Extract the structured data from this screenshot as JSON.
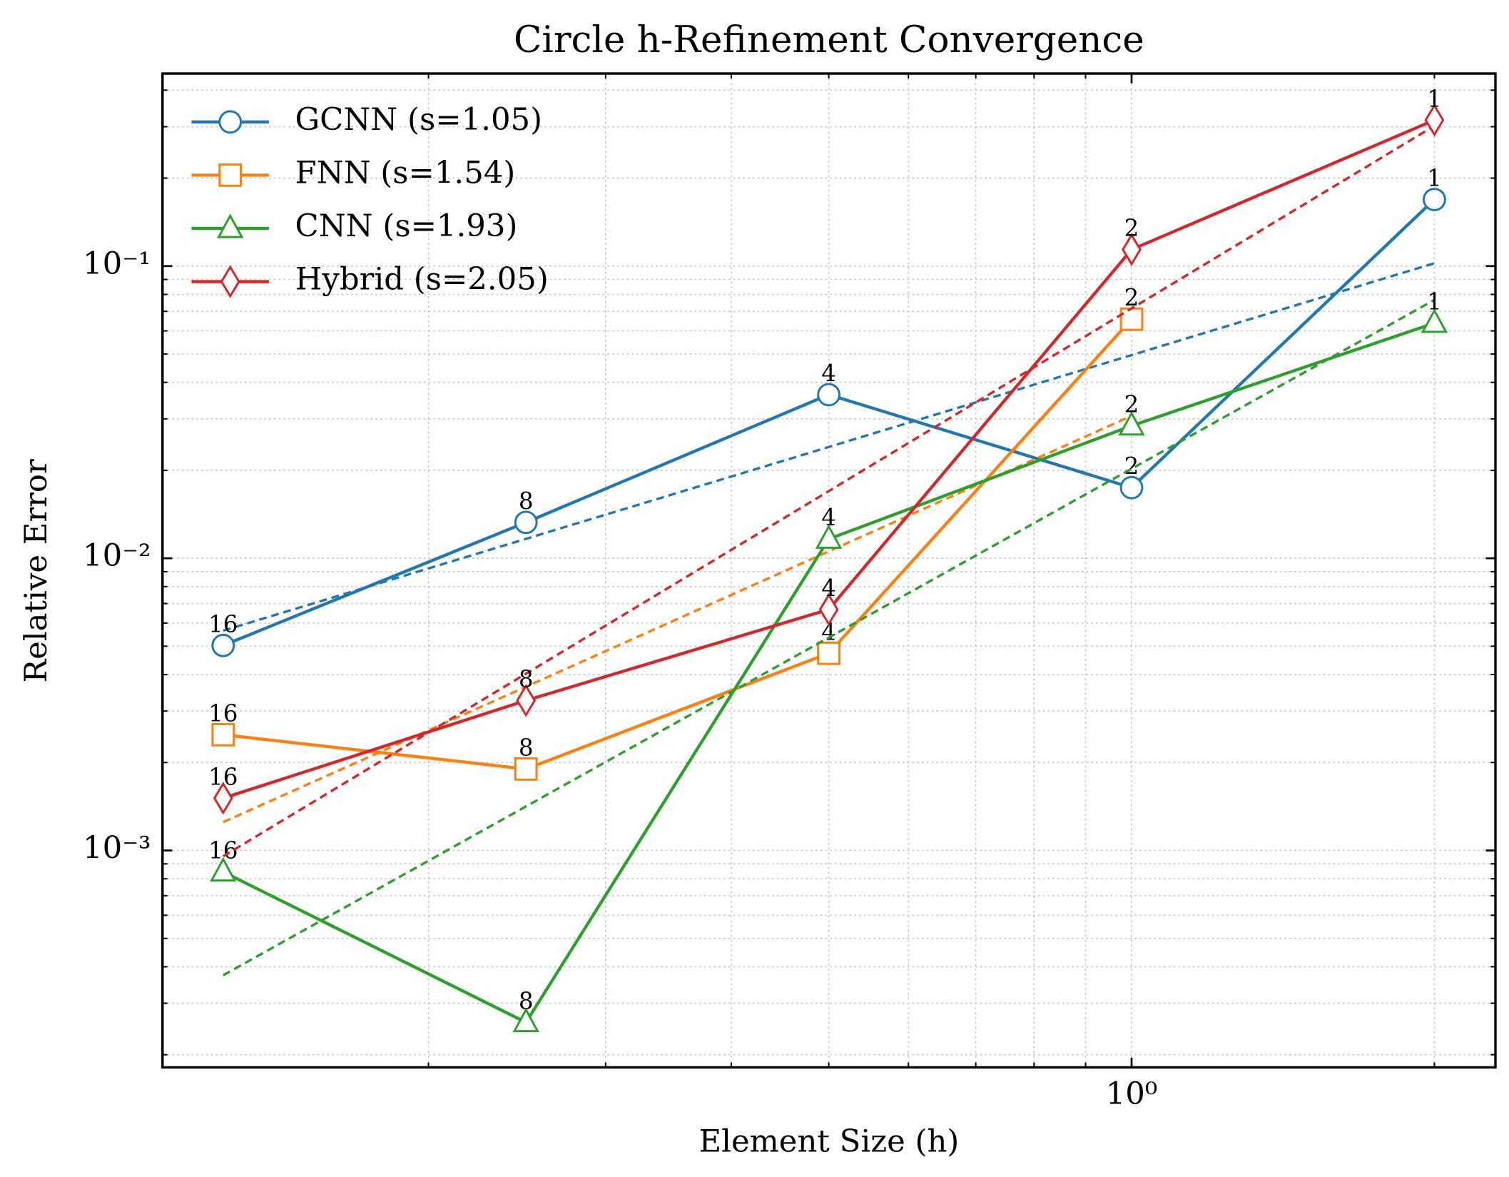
{
  "chart_data": {
    "type": "line",
    "title": "Circle h-Refinement Convergence",
    "x_label": "Element Size (h)",
    "y_label": "Relative Error",
    "log_x": true,
    "log_y": true,
    "grid": true,
    "legend": "upper left",
    "xlim": [
      0.1088,
      2.3
    ],
    "ylim": [
      0.000181,
      0.456
    ],
    "xticks": [
      {
        "value": 1,
        "label": "10⁰"
      }
    ],
    "yticks": [
      {
        "value": 0.001,
        "label": "10⁻³"
      },
      {
        "value": 0.01,
        "label": "10⁻²"
      },
      {
        "value": 0.1,
        "label": "10⁻¹"
      }
    ],
    "xminorticks": [
      0.2,
      0.3,
      0.4,
      0.5,
      0.6,
      0.7,
      0.8,
      0.9,
      2
    ],
    "yminorticks": [
      0.0002,
      0.0003,
      0.0004,
      0.0005,
      0.0006,
      0.0007,
      0.0008,
      0.0009,
      0.002,
      0.003,
      0.004,
      0.005,
      0.006,
      0.007,
      0.008,
      0.009,
      0.02,
      0.03,
      0.04,
      0.05,
      0.06,
      0.07,
      0.08,
      0.09,
      0.2,
      0.3,
      0.4
    ],
    "series": [
      {
        "name": "GCNN (s=1.05)",
        "color": "#1f77b4",
        "marker": "circle",
        "x": [
          0.125,
          0.25,
          0.5,
          1,
          2
        ],
        "values": [
          0.00503,
          0.01327,
          0.0363,
          0.01745,
          0.169
        ],
        "annotations": [
          16,
          8,
          4,
          2,
          1
        ],
        "fit": {
          "x": [
            0.125,
            2
          ],
          "values": [
            0.00565,
            0.1023
          ]
        }
      },
      {
        "name": "FNN (s=1.54)",
        "color": "#ff7f0e",
        "marker": "square",
        "x": [
          0.125,
          0.25,
          0.5,
          1
        ],
        "values": [
          0.00249,
          0.0019,
          0.00473,
          0.0658
        ],
        "annotations": [
          16,
          8,
          4,
          2
        ],
        "fit": {
          "x": [
            0.125,
            1
          ],
          "values": [
            0.00125,
            0.0307
          ]
        }
      },
      {
        "name": "CNN (s=1.93)",
        "color": "#2ca02c",
        "marker": "triangle",
        "x": [
          0.125,
          0.25,
          0.5,
          1,
          2
        ],
        "values": [
          0.000845,
          0.000258,
          0.01164,
          0.0284,
          0.0638
        ],
        "annotations": [
          16,
          8,
          4,
          2,
          1
        ],
        "fit": {
          "x": [
            0.125,
            2
          ],
          "values": [
            0.000374,
            0.0766
          ]
        }
      },
      {
        "name": "Hybrid (s=2.05)",
        "color": "#d62728",
        "marker": "diamond",
        "x": [
          0.125,
          0.25,
          0.5,
          1,
          2
        ],
        "values": [
          0.00151,
          0.00326,
          0.00668,
          0.1139,
          0.316
        ],
        "annotations": [
          16,
          8,
          4,
          2,
          1
        ],
        "fit": {
          "x": [
            0.125,
            2
          ],
          "values": [
            0.000955,
            0.302
          ]
        }
      }
    ]
  }
}
